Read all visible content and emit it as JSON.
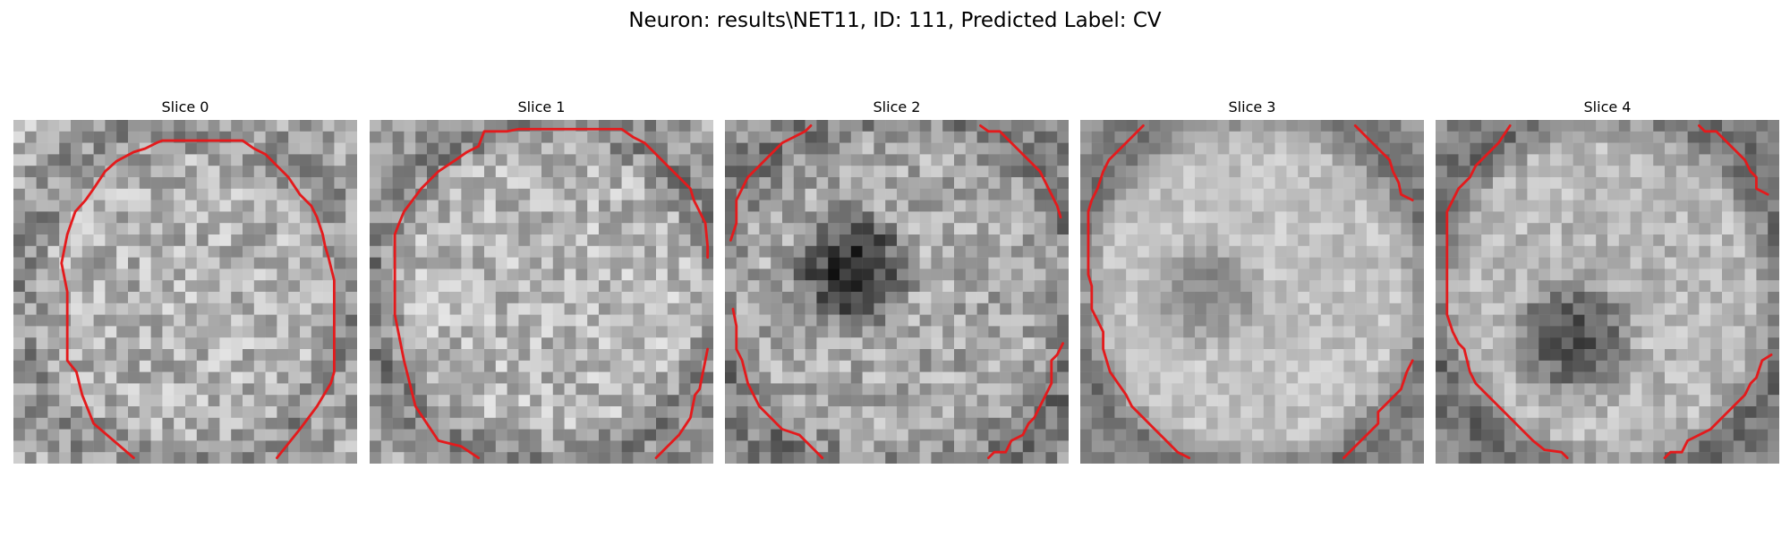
{
  "figure": {
    "title": "Neuron: results\\NET11, ID: 111, Predicted Label: CV"
  },
  "panels": [
    {
      "title": "Slice 0"
    },
    {
      "title": "Slice 1"
    },
    {
      "title": "Slice 2"
    },
    {
      "title": "Slice 3"
    },
    {
      "title": "Slice 4"
    }
  ],
  "style": {
    "contour_color": "#e41a1c",
    "colormap": "grayscale"
  }
}
